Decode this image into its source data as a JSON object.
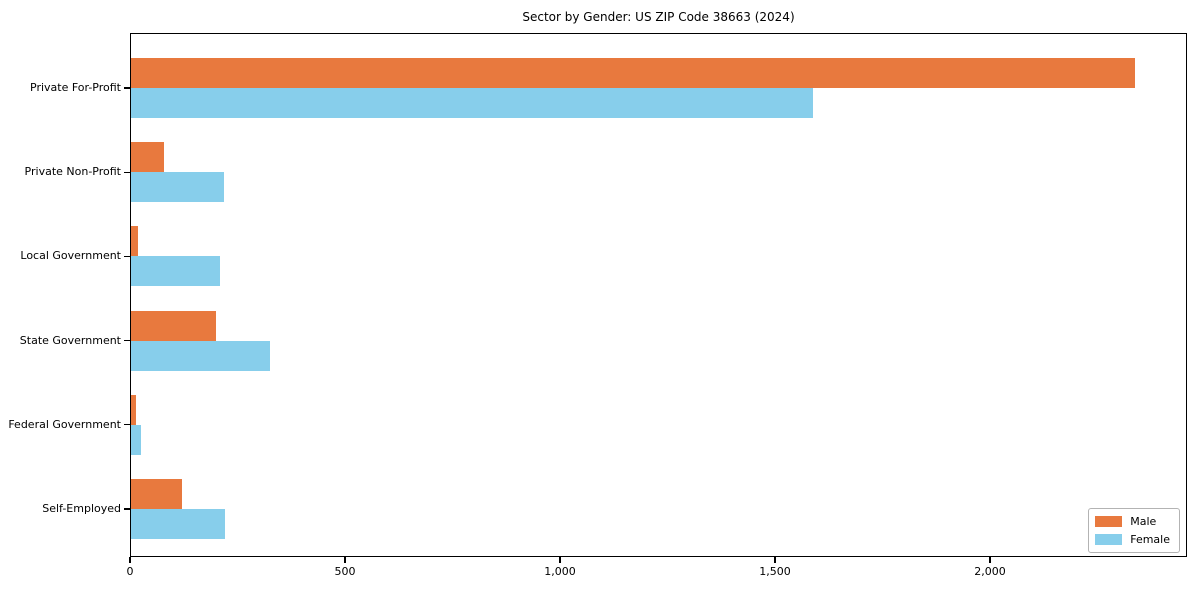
{
  "title": "Sector by Gender: US ZIP Code 38663 (2024)",
  "chart_data": {
    "type": "bar",
    "orientation": "horizontal",
    "title": "Sector by Gender: US ZIP Code 38663 (2024)",
    "xlabel": "",
    "ylabel": "",
    "categories": [
      "Private For-Profit",
      "Private Non-Profit",
      "Local Government",
      "State Government",
      "Federal Government",
      "Self-Employed"
    ],
    "series": [
      {
        "name": "Male",
        "color": "#E8793E",
        "values": [
          2337,
          78,
          19,
          199,
          15,
          120
        ]
      },
      {
        "name": "Female",
        "color": "#87CEEB",
        "values": [
          1588,
          218,
          210,
          326,
          26,
          220
        ]
      }
    ],
    "xlim": [
      0,
      2458
    ],
    "xticks": [
      0,
      500,
      1000,
      1500,
      2000
    ],
    "xtick_labels": [
      "0",
      "500",
      "1,000",
      "1,500",
      "2,000"
    ],
    "grid": false,
    "legend_position": "lower right",
    "background_color": "#ffffff",
    "spine_color": "#000000"
  }
}
